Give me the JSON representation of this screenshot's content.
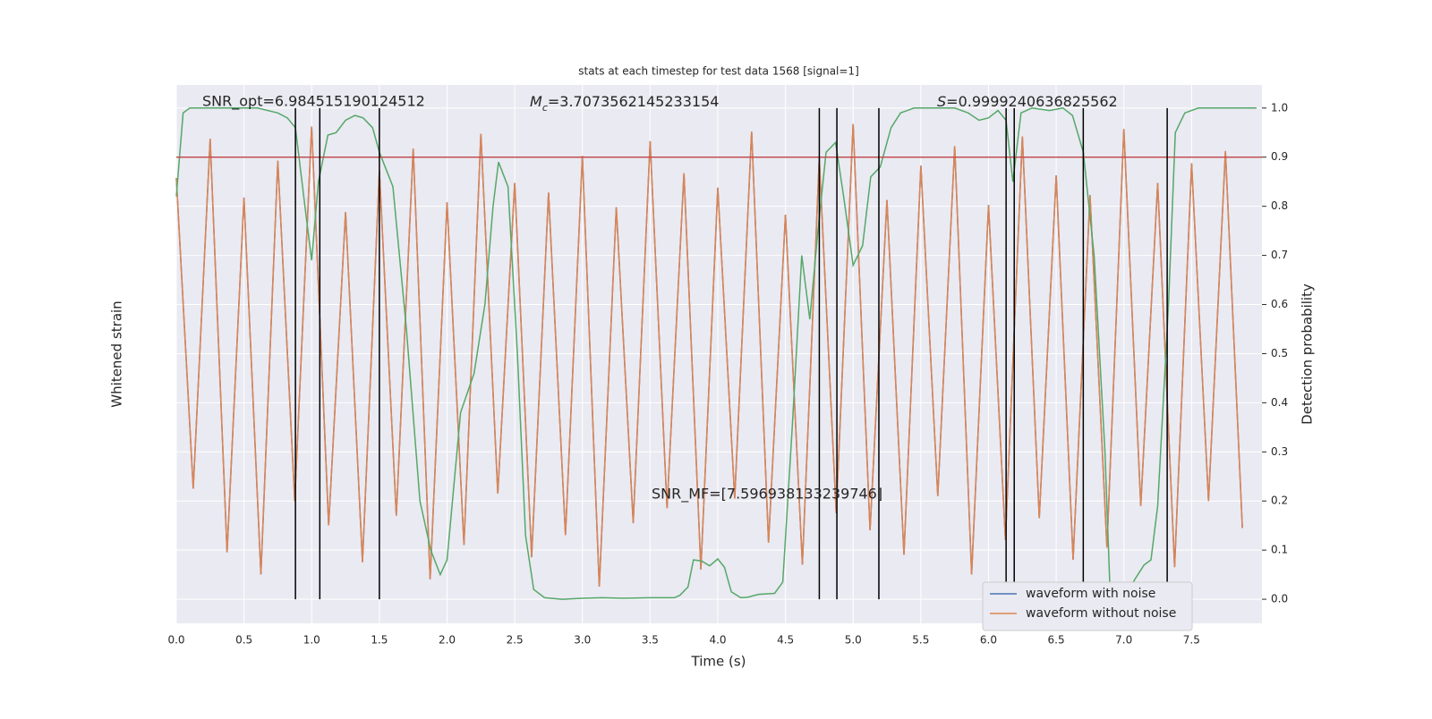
{
  "chart_data": {
    "type": "line",
    "title": "stats at each timestep for test data 1568 [signal=1]",
    "xlabel": "Time (s)",
    "ylabel": "Whitened strain",
    "y2label": "Detection probability",
    "xlim": [
      0,
      8.02
    ],
    "xticks": [
      {
        "value": 0,
        "label": "0.0"
      },
      0.5,
      {
        "value": 1,
        "label": "1.0"
      },
      1.5,
      {
        "value": 2,
        "label": "2.0"
      },
      2.5,
      {
        "value": 3,
        "label": "3.0"
      },
      3.5,
      {
        "value": 4,
        "label": "4.0"
      },
      4.5,
      {
        "value": 5,
        "label": "5.0"
      },
      5.5,
      {
        "value": 6,
        "label": "6.0"
      },
      6.5,
      {
        "value": 7,
        "label": "7.0"
      },
      7.5
    ],
    "ylim": [
      -1.1,
      1.1
    ],
    "y2lim": [
      -0.049,
      1.047
    ],
    "y2ticks": [
      {
        "value": 0,
        "label": "0.0"
      },
      0.1,
      0.2,
      0.3,
      0.4,
      0.5,
      0.6,
      0.7,
      0.8,
      0.9,
      {
        "value": 1,
        "label": "1.0"
      }
    ],
    "grid": true,
    "legend": "lower right",
    "series": [
      {
        "name": "waveform with noise",
        "color": "#4c72b0",
        "x": [
          0,
          0.125,
          0.25,
          0.375,
          0.5,
          0.625,
          0.75,
          0.875,
          1,
          1.125,
          1.25,
          1.375,
          1.5,
          1.625,
          1.75,
          1.875,
          2,
          2.125,
          2.25,
          2.375,
          2.5,
          2.625,
          2.75,
          2.875,
          3,
          3.125,
          3.25,
          3.375,
          3.5,
          3.625,
          3.75,
          3.875,
          4,
          4.125,
          4.25,
          4.375,
          4.5,
          4.625,
          4.75,
          4.875,
          5,
          5.125,
          5.25,
          5.375,
          5.5,
          5.625,
          5.75,
          5.875,
          6,
          6.125,
          6.25,
          6.375,
          6.5,
          6.625,
          6.75,
          6.875,
          7,
          7.125,
          7.25,
          7.375,
          7.5,
          7.625,
          7.75,
          7.875
        ],
        "values": [
          0.72,
          -0.55,
          0.88,
          -0.81,
          0.64,
          -0.9,
          0.79,
          -0.6,
          0.93,
          -0.7,
          0.58,
          -0.85,
          0.75,
          -0.66,
          0.84,
          -0.92,
          0.62,
          -0.78,
          0.9,
          -0.57,
          0.7,
          -0.83,
          0.66,
          -0.74,
          0.81,
          -0.95,
          0.6,
          -0.69,
          0.87,
          -0.63,
          0.74,
          -0.88,
          0.68,
          -0.59,
          0.91,
          -0.77,
          0.57,
          -0.86,
          0.8,
          -0.65,
          0.94,
          -0.72,
          0.63,
          -0.82,
          0.77,
          -0.58,
          0.85,
          -0.9,
          0.61,
          -0.76,
          0.89,
          -0.67,
          0.73,
          -0.84,
          0.65,
          -0.79,
          0.92,
          -0.62,
          0.7,
          -0.87,
          0.78,
          -0.6,
          0.83,
          -0.71
        ]
      },
      {
        "name": "waveform without noise",
        "color": "#dd8452",
        "x": [
          0,
          0.125,
          0.25,
          0.375,
          0.5,
          0.625,
          0.75,
          0.875,
          1,
          1.125,
          1.25,
          1.375,
          1.5,
          1.625,
          1.75,
          1.875,
          2,
          2.125,
          2.25,
          2.375,
          2.5,
          2.625,
          2.75,
          2.875,
          3,
          3.125,
          3.25,
          3.375,
          3.5,
          3.625,
          3.75,
          3.875,
          4,
          4.125,
          4.25,
          4.375,
          4.5,
          4.625,
          4.75,
          4.875,
          5,
          5.125,
          5.25,
          5.375,
          5.5,
          5.625,
          5.75,
          5.875,
          6,
          6.125,
          6.25,
          6.375,
          6.5,
          6.625,
          6.75,
          6.875,
          7,
          7.125,
          7.25,
          7.375,
          7.5,
          7.625,
          7.75,
          7.875
        ],
        "values": [
          0.72,
          -0.55,
          0.88,
          -0.81,
          0.64,
          -0.9,
          0.79,
          -0.6,
          0.93,
          -0.7,
          0.58,
          -0.85,
          0.75,
          -0.66,
          0.84,
          -0.92,
          0.62,
          -0.78,
          0.9,
          -0.57,
          0.7,
          -0.83,
          0.66,
          -0.74,
          0.81,
          -0.95,
          0.6,
          -0.69,
          0.87,
          -0.63,
          0.74,
          -0.88,
          0.68,
          -0.59,
          0.91,
          -0.77,
          0.57,
          -0.86,
          0.8,
          -0.65,
          0.94,
          -0.72,
          0.63,
          -0.82,
          0.77,
          -0.58,
          0.85,
          -0.9,
          0.61,
          -0.76,
          0.89,
          -0.67,
          0.73,
          -0.84,
          0.65,
          -0.79,
          0.92,
          -0.62,
          0.7,
          -0.87,
          0.78,
          -0.6,
          0.83,
          -0.71
        ]
      },
      {
        "color": "#55a868",
        "axis": "y2",
        "x": [
          0,
          0.05,
          0.1,
          0.2,
          0.4,
          0.6,
          0.75,
          0.82,
          0.88,
          0.95,
          1,
          1.05,
          1.12,
          1.18,
          1.25,
          1.32,
          1.38,
          1.45,
          1.5,
          1.6,
          1.7,
          1.8,
          1.88,
          1.95,
          2,
          2.1,
          2.2,
          2.28,
          2.34,
          2.38,
          2.45,
          2.52,
          2.58,
          2.64,
          2.72,
          2.85,
          3,
          3.15,
          3.3,
          3.5,
          3.68,
          3.72,
          3.78,
          3.82,
          3.88,
          3.94,
          4,
          4.05,
          4.1,
          4.17,
          4.22,
          4.3,
          4.42,
          4.48,
          4.55,
          4.62,
          4.68,
          4.74,
          4.8,
          4.87,
          4.93,
          5,
          5.07,
          5.13,
          5.2,
          5.28,
          5.35,
          5.45,
          5.6,
          5.75,
          5.85,
          5.93,
          6,
          6.07,
          6.13,
          6.18,
          6.24,
          6.32,
          6.45,
          6.55,
          6.62,
          6.7,
          6.78,
          6.86,
          6.9,
          6.95,
          7,
          7.08,
          7.15,
          7.2,
          7.25,
          7.33,
          7.38,
          7.45,
          7.55,
          7.7,
          7.98
        ],
        "values": [
          0.82,
          0.99,
          1,
          1,
          1,
          1,
          0.99,
          0.98,
          0.96,
          0.8,
          0.69,
          0.85,
          0.945,
          0.95,
          0.975,
          0.985,
          0.98,
          0.96,
          0.91,
          0.84,
          0.55,
          0.2,
          0.1,
          0.05,
          0.08,
          0.38,
          0.46,
          0.6,
          0.8,
          0.89,
          0.84,
          0.5,
          0.13,
          0.02,
          0.003,
          0,
          0.002,
          0.003,
          0.002,
          0.003,
          0.003,
          0.008,
          0.025,
          0.08,
          0.078,
          0.068,
          0.082,
          0.065,
          0.015,
          0.003,
          0.004,
          0.01,
          0.012,
          0.035,
          0.35,
          0.7,
          0.57,
          0.75,
          0.91,
          0.93,
          0.82,
          0.68,
          0.72,
          0.86,
          0.88,
          0.96,
          0.99,
          1,
          1,
          1,
          0.99,
          0.975,
          0.98,
          0.995,
          0.975,
          0.85,
          0.99,
          1,
          0.995,
          1,
          0.985,
          0.91,
          0.7,
          0.3,
          0,
          -0.02,
          0,
          0.04,
          0.07,
          0.08,
          0.19,
          0.6,
          0.95,
          0.99,
          1,
          1,
          1
        ]
      }
    ],
    "threshold": 0.9,
    "threshold_color": "#c44e52",
    "vlines": [
      0.88,
      1.06,
      1.5,
      4.75,
      4.88,
      5.19,
      6.13,
      6.19,
      6.7,
      7.32
    ],
    "annotations": [
      {
        "text": "SNR_opt=6.984515190124512"
      },
      {
        "symbol": "M",
        "subscript": "c",
        "text": "=3.7073562145233154"
      },
      {
        "symbol": "S",
        "text": "=0.9999240636825562"
      },
      {
        "text": "SNR_MF=[7.596938133239746]"
      }
    ]
  }
}
